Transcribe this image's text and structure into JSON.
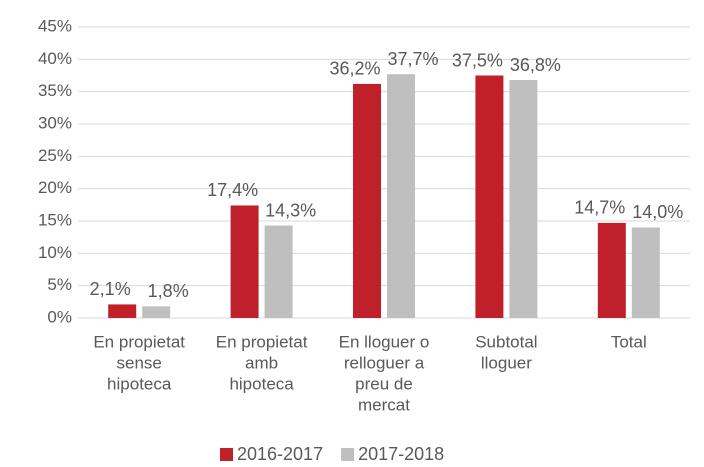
{
  "chart_data": {
    "type": "bar",
    "categories": [
      [
        "En propietat",
        "sense",
        "hipoteca"
      ],
      [
        "En propietat",
        "amb",
        "hipoteca"
      ],
      [
        "En lloguer o",
        "relloguer a",
        "preu de",
        "mercat"
      ],
      [
        "Subtotal",
        "lloguer"
      ],
      [
        "Total"
      ]
    ],
    "series": [
      {
        "name": "2016-2017",
        "color": "#c0202a",
        "values": [
          2.1,
          17.4,
          36.2,
          37.5,
          14.7
        ],
        "value_labels": [
          "2,1%",
          "17,4%",
          "36,2%",
          "37,5%",
          "14,7%"
        ]
      },
      {
        "name": "2017-2018",
        "color": "#bfbfbf",
        "values": [
          1.8,
          14.3,
          37.7,
          36.8,
          14.0
        ],
        "value_labels": [
          "1,8%",
          "14,3%",
          "37,7%",
          "36,8%",
          "14,0%"
        ]
      }
    ],
    "ylim": [
      0,
      45
    ],
    "yticks": [
      {
        "value": 0,
        "label": "0%"
      },
      {
        "value": 5,
        "label": "5%"
      },
      {
        "value": 10,
        "label": "10%"
      },
      {
        "value": 15,
        "label": "15%"
      },
      {
        "value": 20,
        "label": "20%"
      },
      {
        "value": 25,
        "label": "25%"
      },
      {
        "value": 30,
        "label": "30%"
      },
      {
        "value": 35,
        "label": "35%"
      },
      {
        "value": 40,
        "label": "40%"
      },
      {
        "value": 45,
        "label": "45%"
      }
    ],
    "grid": true,
    "legend": "bottom"
  }
}
